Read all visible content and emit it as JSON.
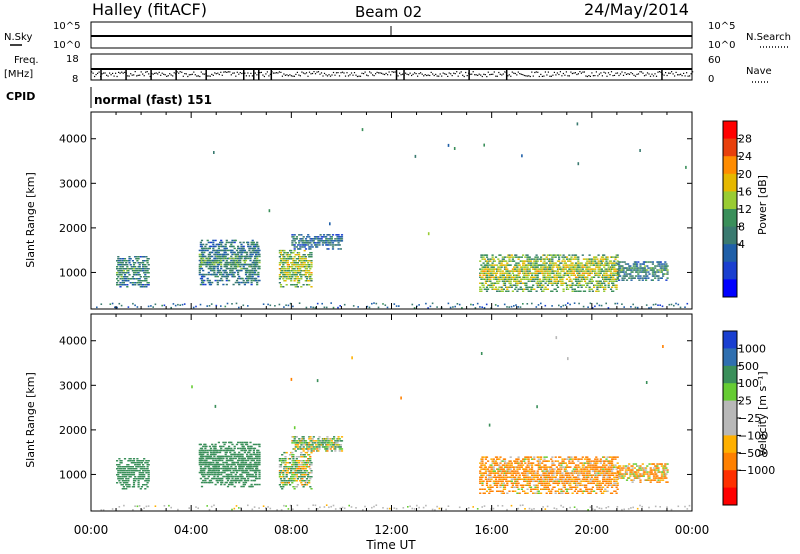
{
  "header": {
    "station": "Halley (fitACF)",
    "beam": "Beam 02",
    "date": "24/May/2014"
  },
  "nsky_panel": {
    "left_label": "N.Sky",
    "right_label": "N.Search",
    "left_ticks": [
      "10^5",
      "10^0"
    ],
    "right_ticks": [
      "10^5",
      "10^0"
    ]
  },
  "freq_panel": {
    "left_label_1": "Freq.",
    "left_label_2": "[MHz]",
    "right_label": "Nave",
    "left_ticks": [
      "18",
      "8"
    ],
    "right_ticks": [
      "60",
      "0"
    ]
  },
  "cpid": {
    "label": "CPID",
    "value": "normal (fast) 151"
  },
  "x_axis": {
    "title": "Time UT",
    "tick_labels": [
      "00:00",
      "04:00",
      "08:00",
      "12:00",
      "16:00",
      "20:00",
      "00:00"
    ]
  },
  "colorbars": {
    "power": {
      "title": "Power [dB]",
      "labels": [
        "28",
        "24",
        "20",
        "16",
        "12",
        "8",
        "4"
      ],
      "colors": [
        "#ff0000",
        "#e8400c",
        "#ff8c00",
        "#e6b800",
        "#99cc33",
        "#3a8f5a",
        "#3a7a70",
        "#1f5fa8",
        "#1a3fd0",
        "#0000ff"
      ]
    },
    "velocity": {
      "title": "Velocity [m s⁻¹]",
      "labels": [
        "1000",
        "500",
        "100",
        "25",
        "−25",
        "−100",
        "−500",
        "−1000"
      ],
      "colors": [
        "#1a3fd0",
        "#2f6fb0",
        "#3a8f5a",
        "#66cc33",
        "#b8b8b8",
        "#b8b8b8",
        "#ffb000",
        "#ff8000",
        "#ff3000",
        "#ff0000"
      ]
    }
  },
  "chart_data": [
    {
      "type": "heatmap",
      "title": "Power",
      "xlabel": "Time UT",
      "ylabel": "Slant Range [km]",
      "xlim": [
        0,
        24
      ],
      "ylim": [
        180,
        4600
      ],
      "y_ticks": [
        1000,
        2000,
        3000,
        4000
      ],
      "colorbar_label": "Power [dB]",
      "colorbar_ticks": [
        4,
        8,
        12,
        16,
        20,
        24,
        28
      ],
      "echo_regions": [
        {
          "t": [
            1.0,
            2.3
          ],
          "range_km": [
            650,
            1350
          ],
          "dominant_level": 8
        },
        {
          "t": [
            4.3,
            6.7
          ],
          "range_km": [
            700,
            1700
          ],
          "dominant_level": 8
        },
        {
          "t": [
            7.5,
            8.8
          ],
          "range_km": [
            650,
            1500
          ],
          "dominant_level": 14
        },
        {
          "t": [
            8.0,
            10.0
          ],
          "range_km": [
            1500,
            1850
          ],
          "dominant_level": 6
        },
        {
          "t": [
            15.5,
            21.0
          ],
          "range_km": [
            550,
            1400
          ],
          "dominant_level": 14
        },
        {
          "t": [
            21.0,
            23.0
          ],
          "range_km": [
            800,
            1250
          ],
          "dominant_level": 8
        }
      ]
    },
    {
      "type": "heatmap",
      "title": "Velocity",
      "xlabel": "Time UT",
      "ylabel": "Slant Range [km]",
      "xlim": [
        0,
        24
      ],
      "ylim": [
        180,
        4600
      ],
      "y_ticks": [
        1000,
        2000,
        3000,
        4000
      ],
      "colorbar_label": "Velocity [m s⁻¹]",
      "colorbar_ticks": [
        1000,
        500,
        100,
        25,
        -25,
        -100,
        -500,
        -1000
      ],
      "echo_regions": [
        {
          "t": [
            1.0,
            2.3
          ],
          "range_km": [
            650,
            1350
          ],
          "dominant_velocity": 300
        },
        {
          "t": [
            4.3,
            6.7
          ],
          "range_km": [
            700,
            1700
          ],
          "dominant_velocity": 300
        },
        {
          "t": [
            7.5,
            8.8
          ],
          "range_km": [
            650,
            1500
          ],
          "dominant_velocity": 60
        },
        {
          "t": [
            8.0,
            10.0
          ],
          "range_km": [
            1500,
            1850
          ],
          "dominant_velocity": 60
        },
        {
          "t": [
            15.5,
            21.0
          ],
          "range_km": [
            550,
            1400
          ],
          "dominant_velocity": -150
        },
        {
          "t": [
            21.0,
            23.0
          ],
          "range_km": [
            800,
            1250
          ],
          "dominant_velocity": -100
        }
      ]
    }
  ]
}
